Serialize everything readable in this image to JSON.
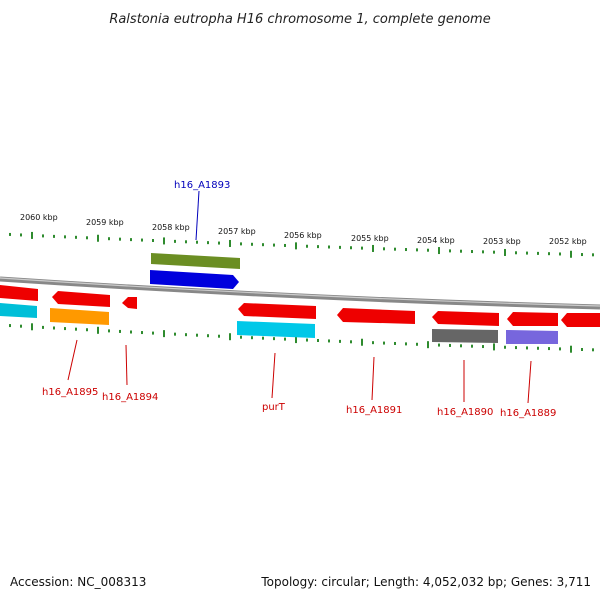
{
  "title": "Ralstonia eutropha H16 chromosome 1, complete genome",
  "footer": {
    "accession": "Accession: NC_008313",
    "topology": "Topology: circular; Length: 4,052,032 bp; Genes: 3,711"
  },
  "colors": {
    "backbone": "#888888",
    "tick": "#2e8b2e",
    "label_red": "#cc0000",
    "label_blue": "#0000bb"
  },
  "kbp_labels": [
    "2060 kbp",
    "2059 kbp",
    "2058 kbp",
    "2057 kbp",
    "2056 kbp",
    "2055 kbp",
    "2054 kbp",
    "2053 kbp",
    "2052 kbp"
  ],
  "gene_labels": [
    {
      "text": "h16_A1893",
      "color": "#0000bb"
    },
    {
      "text": "h16_A1895",
      "color": "#cc0000"
    },
    {
      "text": "h16_A1894",
      "color": "#cc0000"
    },
    {
      "text": "purT",
      "color": "#cc0000"
    },
    {
      "text": "h16_A1891",
      "color": "#cc0000"
    },
    {
      "text": "h16_A1890",
      "color": "#cc0000"
    },
    {
      "text": "h16_A1889",
      "color": "#cc0000"
    }
  ],
  "features": [
    {
      "color": "#6b8e23"
    },
    {
      "color": "#0000dd"
    },
    {
      "color": "#ee0000"
    },
    {
      "color": "#ee0000"
    },
    {
      "color": "#ee0000"
    },
    {
      "color": "#ee0000"
    },
    {
      "color": "#ee0000"
    },
    {
      "color": "#ee0000"
    },
    {
      "color": "#ee0000"
    },
    {
      "color": "#ee0000"
    },
    {
      "color": "#00bfd8"
    },
    {
      "color": "#ff9900"
    },
    {
      "color": "#00c8e8"
    },
    {
      "color": "#666666"
    },
    {
      "color": "#7766dd"
    }
  ]
}
